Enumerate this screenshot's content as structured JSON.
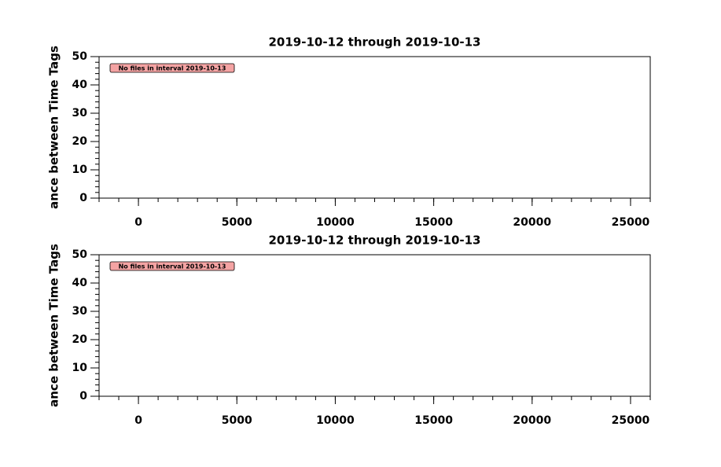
{
  "chart_data": [
    {
      "type": "line",
      "title": "2019-10-12 through 2019-10-13",
      "ylabel": "ance between Time Tags",
      "annotation": "No files in interval 2019-10-13",
      "xlim": [
        -2000,
        26000
      ],
      "xticks": [
        0,
        5000,
        10000,
        15000,
        20000,
        25000
      ],
      "ylim": [
        0,
        50
      ],
      "yticks": [
        0,
        10,
        20,
        30,
        40,
        50
      ],
      "series": []
    },
    {
      "type": "line",
      "title": "2019-10-12 through 2019-10-13",
      "ylabel": "ance between Time Tags",
      "annotation": "No files in interval 2019-10-13",
      "xlim": [
        -2000,
        26000
      ],
      "xticks": [
        0,
        5000,
        10000,
        15000,
        20000,
        25000
      ],
      "ylim": [
        0,
        50
      ],
      "yticks": [
        0,
        10,
        20,
        30,
        40,
        50
      ],
      "series": []
    }
  ]
}
